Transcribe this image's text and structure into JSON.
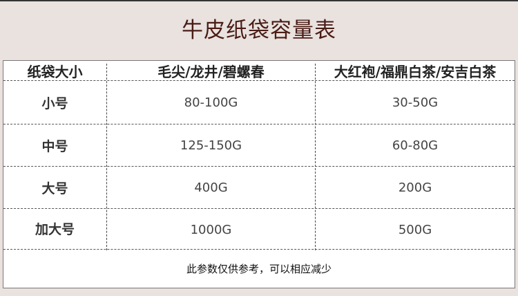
{
  "title": "牛皮纸袋容量表",
  "headers": [
    "纸袋大小",
    "毛尖/龙井/碧螺春",
    "大红袍/福鼎白茶/安吉白茶"
  ],
  "rows": [
    {
      "size": "小号",
      "green": "80-100G",
      "other": "30-50G"
    },
    {
      "size": "中号",
      "green": "125-150G",
      "other": "60-80G"
    },
    {
      "size": "大号",
      "green": "400G",
      "other": "200G"
    },
    {
      "size": "加大号",
      "green": "1000G",
      "other": "500G"
    }
  ],
  "note": "此参数仅供参考，可以相应减少"
}
